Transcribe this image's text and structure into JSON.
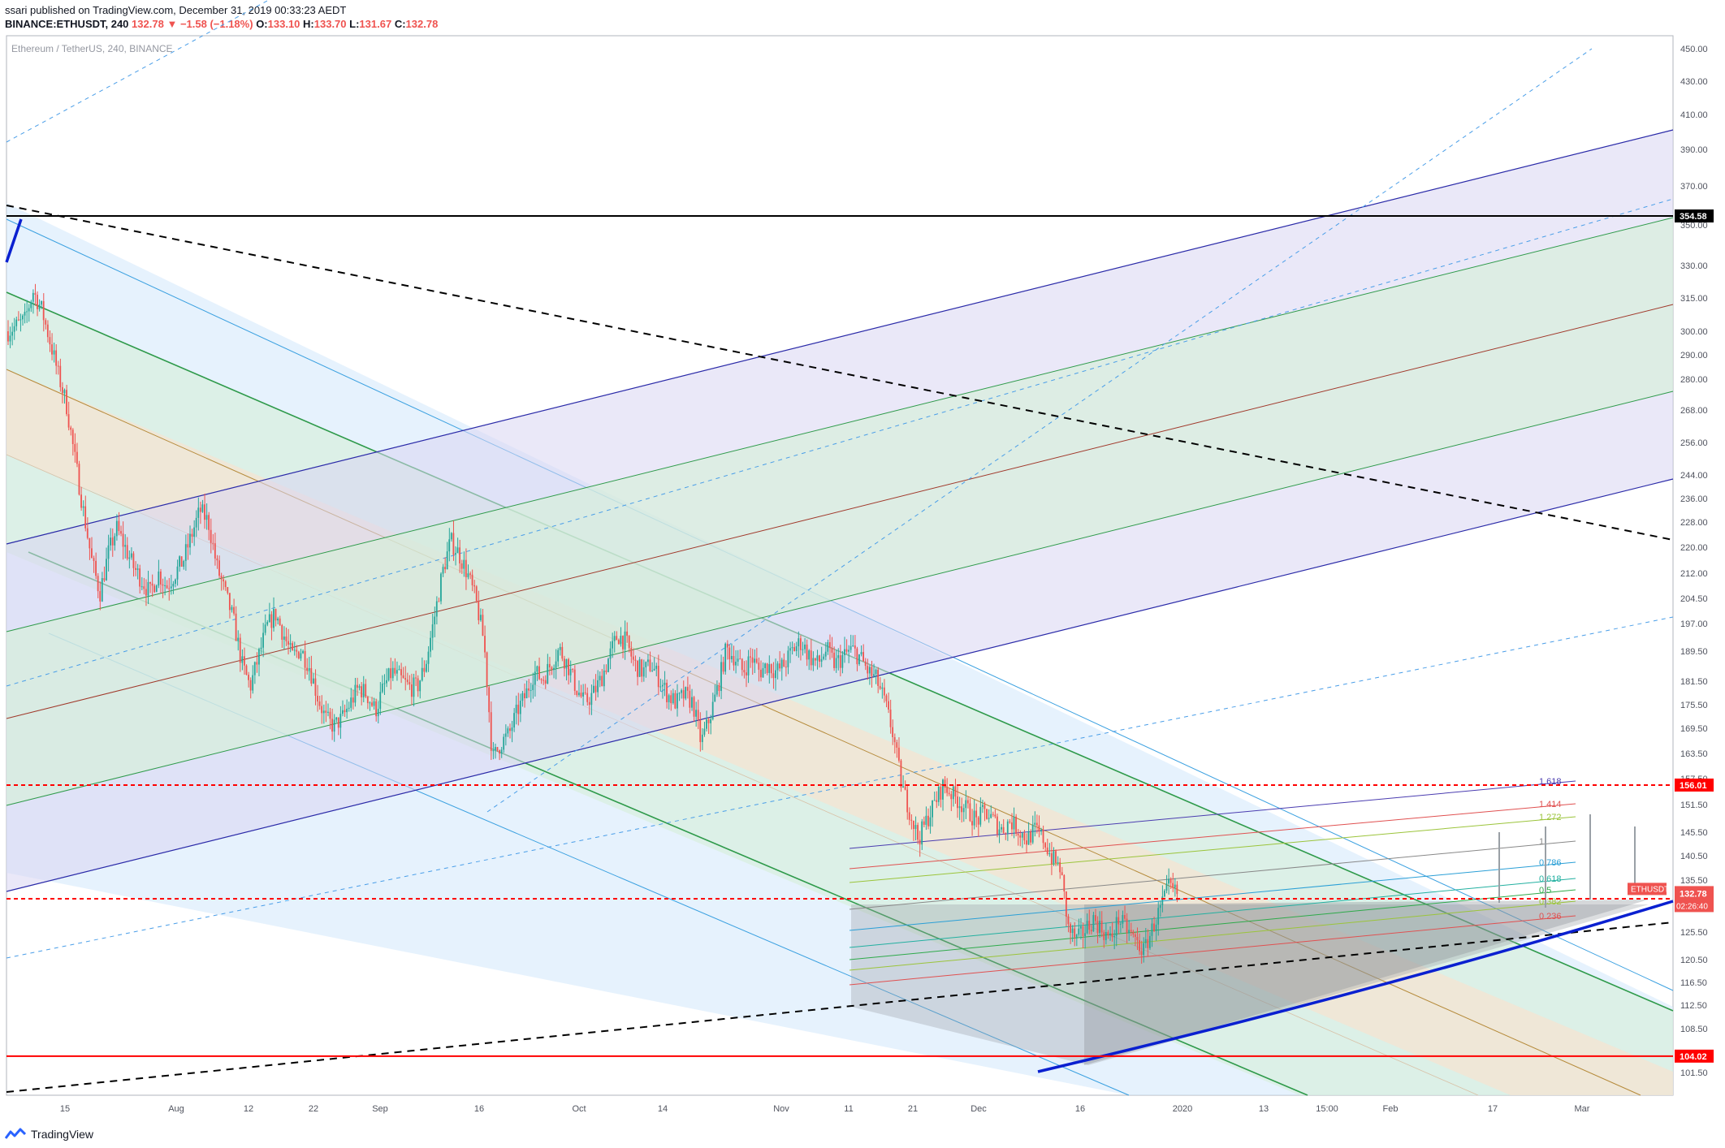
{
  "header": {
    "line1": "ssari published on TradingView.com, December 31, 2019 00:33:23 AEDT",
    "symbol": "BINANCE:ETHUSDT, 240",
    "last": "132.78",
    "arrow": "▼",
    "change": "−1.58 (−1.18%)",
    "open_label": "O:",
    "open": "133.10",
    "high_label": "H:",
    "high": "133.70",
    "low_label": "L:",
    "low": "131.67",
    "close_label": "C:",
    "close": "132.78"
  },
  "chart_title": "Ethereum / TetherUS, 240, BINANCE",
  "footer": {
    "brand": "TradingView",
    "logo_icon": "tradingview-logo-icon"
  },
  "colors": {
    "up": "#26a69a",
    "down": "#ef5350",
    "red_line": "#ff0000",
    "blue_line": "#0a20d0",
    "fib_purple": "#d9d5f2",
    "fib_green": "#d6efd8",
    "fib_blue": "#d2e8fb",
    "fib_orange": "#f7e3d0"
  },
  "chart_data": {
    "type": "candlestick",
    "price_axis_ticks": [
      "450.00",
      "430.00",
      "410.00",
      "390.00",
      "370.00",
      "350.00",
      "330.00",
      "315.00",
      "300.00",
      "290.00",
      "280.00",
      "268.00",
      "256.00",
      "244.00",
      "236.00",
      "228.00",
      "220.00",
      "212.00",
      "204.50",
      "197.00",
      "189.50",
      "181.50",
      "175.50",
      "169.50",
      "163.50",
      "157.50",
      "151.50",
      "145.50",
      "140.50",
      "135.50",
      "130.50",
      "125.50",
      "120.50",
      "116.50",
      "112.50",
      "108.50",
      "104.50",
      "101.50"
    ],
    "time_axis_ticks": [
      "15",
      "Aug",
      "12",
      "22",
      "Sep",
      "16",
      "Oct",
      "14",
      "Nov",
      "11",
      "21",
      "Dec",
      "16",
      "2020",
      "13",
      "15:00",
      "Feb",
      "17",
      "Mar"
    ],
    "horizontal_lines": [
      {
        "label": "354.58",
        "value": 354.58,
        "color": "#000000",
        "style": "solid"
      },
      {
        "label": "156.01",
        "value": 156.01,
        "color": "#ff0000",
        "style": "dashed"
      },
      {
        "label": "104.02",
        "value": 104.02,
        "color": "#ff0000",
        "style": "solid"
      },
      {
        "label": "",
        "value": 131.9,
        "color": "#ff0000",
        "style": "dashed"
      }
    ],
    "current_price": {
      "symbol": "ETHUSDT",
      "value": "132.78",
      "countdown": "02:26:40"
    },
    "fib_levels": [
      "1.618",
      "1.414",
      "1.272",
      "1",
      "0.786",
      "0.618",
      "0.5",
      "0.382",
      "0.236"
    ],
    "ylim": [
      100,
      460
    ],
    "price_path": [
      [
        0,
        300
      ],
      [
        2,
        305
      ],
      [
        3,
        318
      ],
      [
        4,
        310
      ],
      [
        5,
        296
      ],
      [
        6,
        282
      ],
      [
        7,
        270
      ],
      [
        8,
        250
      ],
      [
        9,
        232
      ],
      [
        10,
        216
      ],
      [
        11,
        206
      ],
      [
        12,
        218
      ],
      [
        13,
        226
      ],
      [
        14,
        220
      ],
      [
        15,
        214
      ],
      [
        16,
        210
      ],
      [
        17,
        206
      ],
      [
        18,
        212
      ],
      [
        19,
        208
      ],
      [
        20,
        212
      ],
      [
        21,
        216
      ],
      [
        22,
        224
      ],
      [
        23,
        232
      ],
      [
        24,
        228
      ],
      [
        25,
        214
      ],
      [
        26,
        206
      ],
      [
        27,
        198
      ],
      [
        28,
        186
      ],
      [
        29,
        180
      ],
      [
        30,
        188
      ],
      [
        31,
        196
      ],
      [
        32,
        200
      ],
      [
        33,
        194
      ],
      [
        34,
        188
      ],
      [
        35,
        190
      ],
      [
        36,
        186
      ],
      [
        37,
        178
      ],
      [
        38,
        172
      ],
      [
        39,
        170
      ],
      [
        40,
        172
      ],
      [
        41,
        176
      ],
      [
        42,
        180
      ],
      [
        43,
        178
      ],
      [
        44,
        174
      ],
      [
        45,
        180
      ],
      [
        46,
        184
      ],
      [
        47,
        182
      ],
      [
        48,
        180
      ],
      [
        49,
        180
      ],
      [
        50,
        186
      ],
      [
        51,
        198
      ],
      [
        52,
        212
      ],
      [
        53,
        222
      ],
      [
        54,
        218
      ],
      [
        55,
        212
      ],
      [
        56,
        204
      ],
      [
        57,
        192
      ],
      [
        58,
        162
      ],
      [
        59,
        166
      ],
      [
        60,
        168
      ],
      [
        61,
        174
      ],
      [
        62,
        178
      ],
      [
        63,
        184
      ],
      [
        64,
        182
      ],
      [
        65,
        186
      ],
      [
        66,
        190
      ],
      [
        67,
        186
      ],
      [
        68,
        180
      ],
      [
        69,
        176
      ],
      [
        70,
        178
      ],
      [
        71,
        182
      ],
      [
        72,
        188
      ],
      [
        73,
        194
      ],
      [
        74,
        192
      ],
      [
        75,
        186
      ],
      [
        76,
        184
      ],
      [
        77,
        186
      ],
      [
        78,
        182
      ],
      [
        79,
        178
      ],
      [
        80,
        176
      ],
      [
        81,
        178
      ],
      [
        82,
        176
      ],
      [
        83,
        166
      ],
      [
        84,
        172
      ],
      [
        85,
        180
      ],
      [
        86,
        190
      ],
      [
        87,
        188
      ],
      [
        88,
        184
      ],
      [
        89,
        188
      ],
      [
        90,
        184
      ],
      [
        91,
        186
      ],
      [
        92,
        184
      ],
      [
        93,
        186
      ],
      [
        94,
        190
      ],
      [
        95,
        192
      ],
      [
        96,
        188
      ],
      [
        97,
        186
      ],
      [
        98,
        190
      ],
      [
        99,
        186
      ],
      [
        100,
        188
      ],
      [
        101,
        190
      ],
      [
        102,
        188
      ],
      [
        103,
        184
      ],
      [
        104,
        182
      ],
      [
        105,
        176
      ],
      [
        106,
        168
      ],
      [
        107,
        156
      ],
      [
        108,
        150
      ],
      [
        109,
        144
      ],
      [
        110,
        148
      ],
      [
        111,
        152
      ],
      [
        112,
        156
      ],
      [
        113,
        154
      ],
      [
        114,
        152
      ],
      [
        115,
        150
      ],
      [
        116,
        148
      ],
      [
        117,
        150
      ],
      [
        118,
        148
      ],
      [
        119,
        146
      ],
      [
        120,
        148
      ],
      [
        121,
        146
      ],
      [
        122,
        144
      ],
      [
        123,
        146
      ],
      [
        124,
        144
      ],
      [
        125,
        140
      ],
      [
        126,
        138
      ],
      [
        127,
        126
      ],
      [
        128,
        124
      ],
      [
        129,
        126
      ],
      [
        130,
        128
      ],
      [
        131,
        126
      ],
      [
        132,
        124
      ],
      [
        133,
        128
      ],
      [
        134,
        126
      ],
      [
        135,
        124
      ],
      [
        136,
        122
      ],
      [
        137,
        126
      ],
      [
        138,
        130
      ],
      [
        139,
        134
      ],
      [
        140,
        132.78
      ]
    ]
  }
}
